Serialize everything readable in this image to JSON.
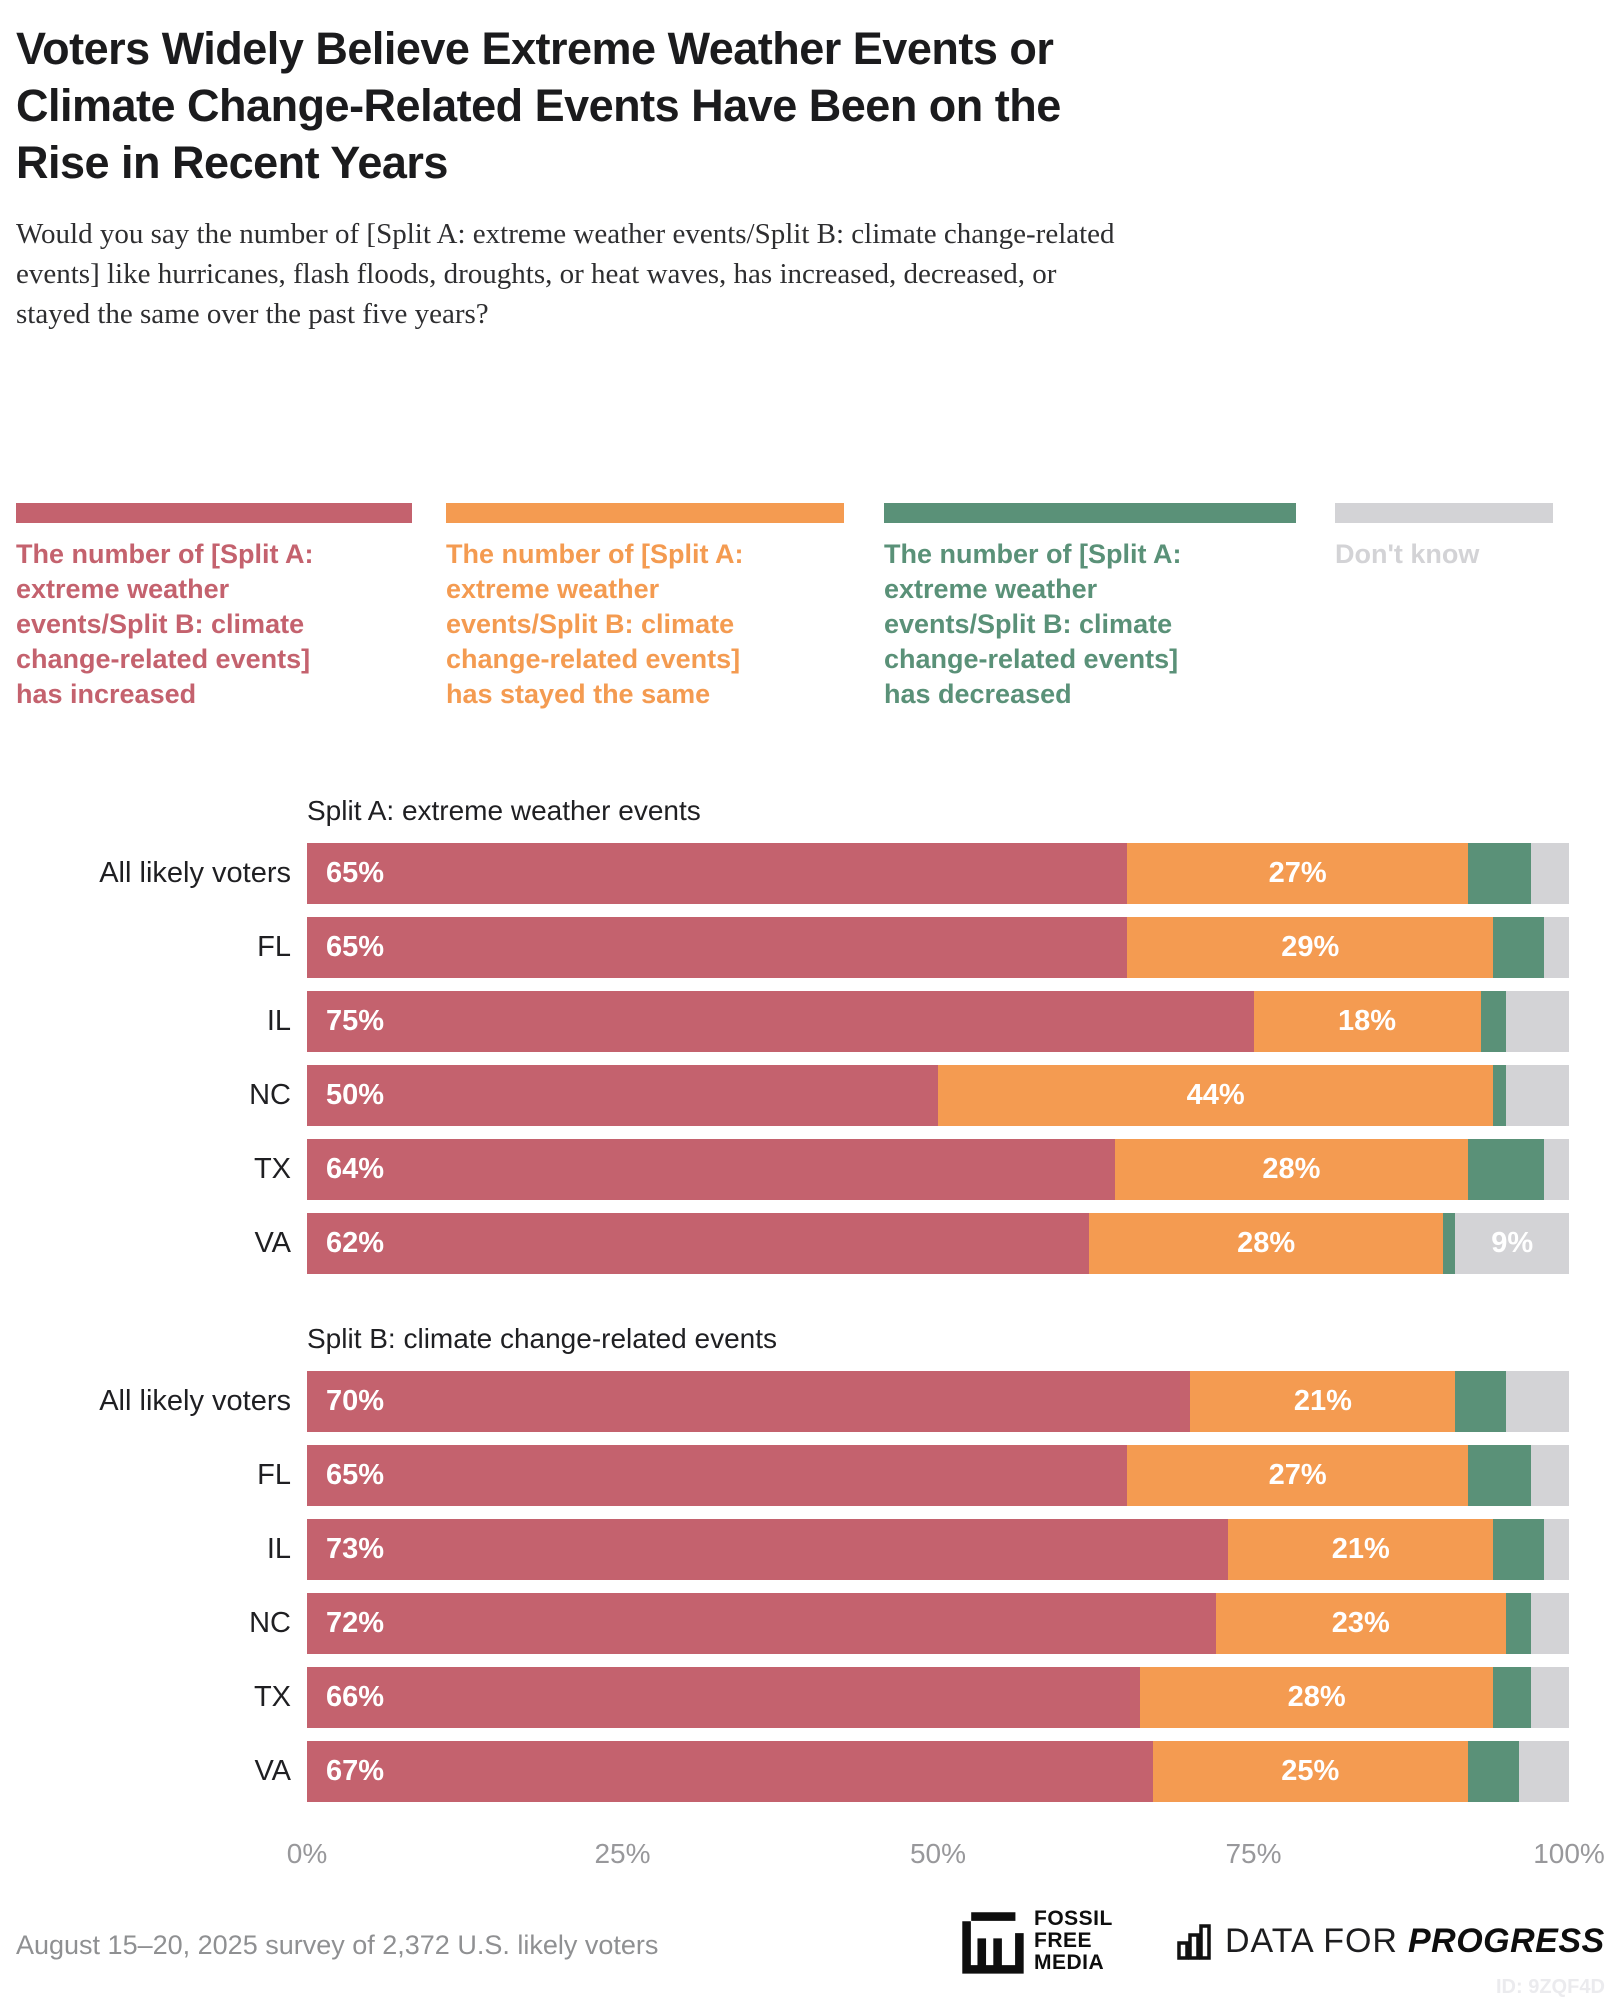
{
  "title": "Voters Widely Believe Extreme Weather Events or\nClimate Change-Related Events Have Been on the\nRise in Recent Years",
  "subtitle": "Would you say the number of [Split A: extreme weather events/Split B: climate change-related\nevents] like hurricanes, flash floods, droughts, or heat waves, has increased, decreased, or\nstayed the same over the past five years?",
  "legend": {
    "items": [
      {
        "key": "increased",
        "label": "The number of [Split A:\nextreme weather\nevents/Split B: climate\nchange-related events]\nhas increased",
        "color": "#c4626e"
      },
      {
        "key": "stayed-same",
        "label": "The number of [Split A:\nextreme weather\nevents/Split B: climate\nchange-related events]\nhas stayed the same",
        "color": "#f49b51"
      },
      {
        "key": "decreased",
        "label": "The number of [Split A:\nextreme weather\nevents/Split B: climate\nchange-related events]\nhas decreased",
        "color": "#5a9178"
      },
      {
        "key": "dont-know",
        "label": "Don't know",
        "color": "#d3d3d6"
      }
    ]
  },
  "chart_data": {
    "type": "bar",
    "stacked": true,
    "orientation": "horizontal",
    "x_axis": {
      "min": 0,
      "max": 100,
      "ticks": [
        "0%",
        "25%",
        "50%",
        "75%",
        "100%"
      ]
    },
    "label_threshold": 9,
    "series": [
      {
        "key": "increased",
        "name": "The number of [Split A: extreme weather events/Split B: climate change-related events] has increased",
        "color": "#c4626e"
      },
      {
        "key": "stayed-same",
        "name": "The number of [Split A: extreme weather events/Split B: climate change-related events] has stayed the same",
        "color": "#f49b51"
      },
      {
        "key": "decreased",
        "name": "The number of [Split A: extreme weather events/Split B: climate change-related events] has decreased",
        "color": "#5a9178"
      },
      {
        "key": "dont-know",
        "name": "Don't know",
        "color": "#d3d3d6"
      }
    ],
    "groups": [
      {
        "heading": "Split A: extreme weather events",
        "rows": [
          {
            "category": "All likely voters",
            "values": [
              65,
              27,
              5,
              3
            ]
          },
          {
            "category": "FL",
            "values": [
              65,
              29,
              4,
              2
            ]
          },
          {
            "category": "IL",
            "values": [
              75,
              18,
              2,
              5
            ]
          },
          {
            "category": "NC",
            "values": [
              50,
              44,
              1,
              5
            ]
          },
          {
            "category": "TX",
            "values": [
              64,
              28,
              6,
              2
            ]
          },
          {
            "category": "VA",
            "values": [
              62,
              28,
              1,
              9
            ]
          }
        ]
      },
      {
        "heading": "Split B: climate change-related events",
        "rows": [
          {
            "category": "All likely voters",
            "values": [
              70,
              21,
              4,
              5
            ]
          },
          {
            "category": "FL",
            "values": [
              65,
              27,
              5,
              3
            ]
          },
          {
            "category": "IL",
            "values": [
              73,
              21,
              4,
              2
            ]
          },
          {
            "category": "NC",
            "values": [
              72,
              23,
              2,
              3
            ]
          },
          {
            "category": "TX",
            "values": [
              66,
              28,
              3,
              3
            ]
          },
          {
            "category": "VA",
            "values": [
              67,
              25,
              4,
              4
            ]
          }
        ]
      }
    ]
  },
  "footer": {
    "survey_note": "August 15–20, 2025 survey of 2,372 U.S. likely voters",
    "fossil_free_media_text": "FOSSIL\nFREE\nMEDIA",
    "dfp_light": "DATA FOR",
    "dfp_bold": "PROGRESS",
    "chart_id": "ID: 9ZQF4D"
  },
  "layout_hints": {
    "legend_position": "top",
    "grid": false,
    "bar_value_labels": "white, shown when segment ≥ 9%"
  }
}
